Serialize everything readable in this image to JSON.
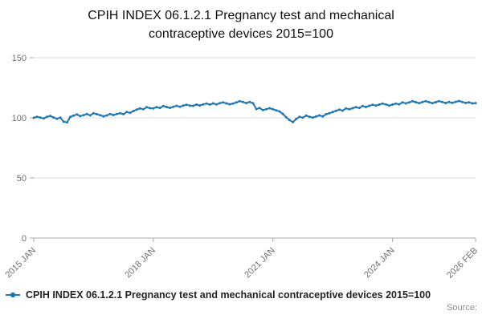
{
  "chart_data": {
    "type": "line",
    "title": "CPIH INDEX 06.1.2.1 Pregnancy test and mechanical contraceptive devices 2015=100",
    "xlabel": "",
    "ylabel": "",
    "ylim": [
      0,
      150
    ],
    "yticks": [
      0,
      50,
      100,
      150
    ],
    "grid": true,
    "legend_position": "bottom-left",
    "x_start": "2015 JAN",
    "x_end": "2026 FEB",
    "x_frequency": "monthly",
    "xticks": [
      {
        "index": 0,
        "label": "2015 JAN"
      },
      {
        "index": 36,
        "label": "2018 JAN"
      },
      {
        "index": 72,
        "label": "2021 JAN"
      },
      {
        "index": 108,
        "label": "2024 JAN"
      },
      {
        "index": 133,
        "label": "2026 FEB"
      }
    ],
    "series": [
      {
        "name": "CPIH INDEX 06.1.2.1 Pregnancy test and mechanical contraceptive devices 2015=100",
        "color": "#1f77b4",
        "values": [
          100,
          100.8,
          100.2,
          99.5,
          100.9,
          101.6,
          100.3,
          99.2,
          100.1,
          96.8,
          96.2,
          100.7,
          101.9,
          102.8,
          101.4,
          102.2,
          103.1,
          102,
          103.8,
          103,
          102.1,
          101.3,
          102,
          103.2,
          102.3,
          103.1,
          103.9,
          103,
          104.8,
          104.1,
          105.6,
          106.9,
          107.8,
          107.1,
          108.8,
          108,
          107.9,
          108.9,
          108.2,
          109.8,
          109,
          108.3,
          109.1,
          110,
          109.2,
          110.1,
          110.9,
          110.2,
          110,
          111,
          110.3,
          111.1,
          111.9,
          111,
          112,
          111.2,
          112.1,
          112.8,
          112,
          111.3,
          111.9,
          112.8,
          113.9,
          113.1,
          112.3,
          113.2,
          112.1,
          107.3,
          108.1,
          106.4,
          107.2,
          108,
          107.1,
          106.2,
          105.3,
          103.2,
          100.4,
          98.1,
          96.4,
          99,
          100.9,
          100.1,
          101.8,
          100.9,
          100.2,
          101.1,
          102,
          101.2,
          103,
          103.9,
          104.8,
          105.9,
          106.8,
          106,
          107.9,
          107.1,
          108,
          108.9,
          108.1,
          109.8,
          109,
          110,
          110.9,
          110.1,
          111,
          111.9,
          111.1,
          110.2,
          111,
          111.9,
          111.2,
          112.8,
          112,
          112.9,
          113.8,
          113,
          112.2,
          113.1,
          113.9,
          113,
          112.2,
          113,
          113.9,
          113.1,
          112.3,
          113.2,
          112.4,
          113.3,
          114,
          113.2,
          112.4,
          112.9,
          112,
          112.3
        ]
      }
    ]
  },
  "footer": {
    "source_label": "Source:"
  },
  "colors": {
    "series_blue": "#1f77b4",
    "gridline": "#dcdcdc",
    "axis": "#a8a8a8",
    "tick_text": "#707070"
  }
}
